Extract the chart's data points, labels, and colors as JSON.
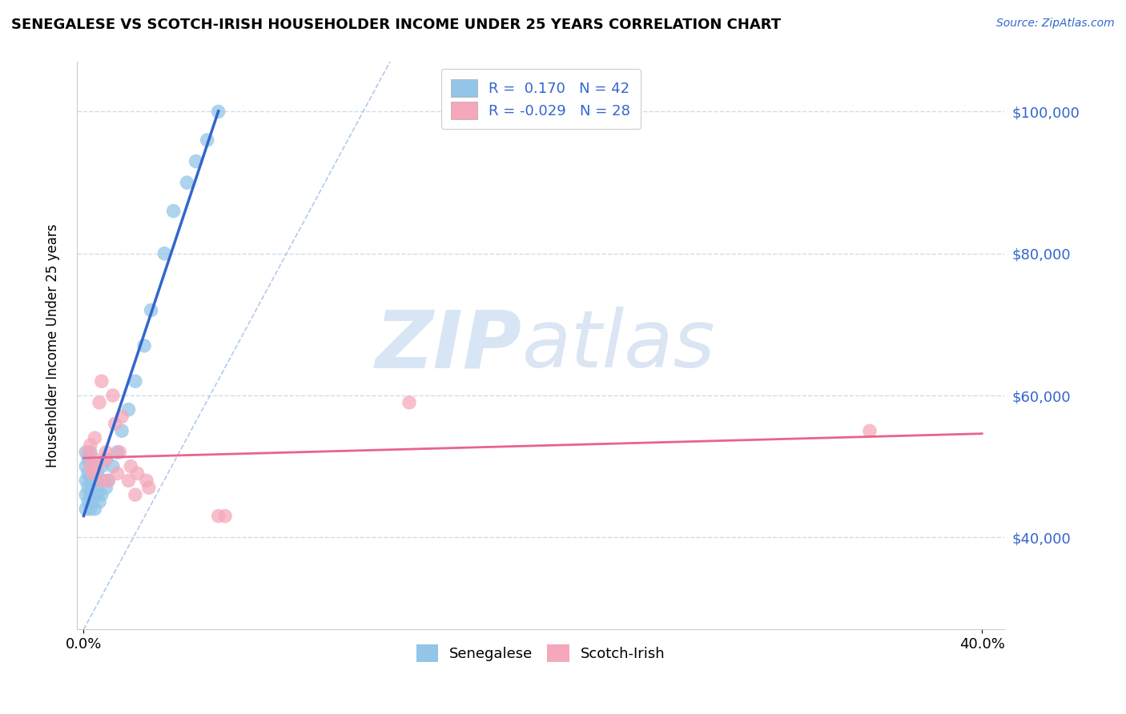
{
  "title": "SENEGALESE VS SCOTCH-IRISH HOUSEHOLDER INCOME UNDER 25 YEARS CORRELATION CHART",
  "source": "Source: ZipAtlas.com",
  "ylabel": "Householder Income Under 25 years",
  "xlim": [
    -0.003,
    0.41
  ],
  "ylim": [
    27000,
    107000
  ],
  "yticks": [
    40000,
    60000,
    80000,
    100000
  ],
  "ytick_labels": [
    "$40,000",
    "$60,000",
    "$80,000",
    "$100,000"
  ],
  "watermark_zip": "ZIP",
  "watermark_atlas": "atlas",
  "senegalese_color": "#92C5E8",
  "scotch_irish_color": "#F5A8BC",
  "senegalese_line_color": "#3366CC",
  "scotch_irish_line_color": "#E8648C",
  "diagonal_color": "#aac5e8",
  "background_color": "#ffffff",
  "grid_color": "#d0dce8",
  "senegalese_x": [
    0.001,
    0.001,
    0.001,
    0.001,
    0.001,
    0.002,
    0.002,
    0.002,
    0.002,
    0.003,
    0.003,
    0.003,
    0.003,
    0.004,
    0.004,
    0.004,
    0.005,
    0.005,
    0.005,
    0.006,
    0.006,
    0.007,
    0.007,
    0.008,
    0.008,
    0.009,
    0.01,
    0.01,
    0.011,
    0.013,
    0.015,
    0.017,
    0.02,
    0.023,
    0.027,
    0.03,
    0.036,
    0.04,
    0.046,
    0.05,
    0.055,
    0.06
  ],
  "senegalese_y": [
    44000,
    46000,
    48000,
    50000,
    52000,
    45000,
    47000,
    49000,
    51000,
    44000,
    46000,
    48000,
    52000,
    45000,
    47000,
    50000,
    44000,
    48000,
    50000,
    46000,
    49000,
    45000,
    48000,
    46000,
    50000,
    48000,
    47000,
    51000,
    48000,
    50000,
    52000,
    55000,
    58000,
    62000,
    67000,
    72000,
    80000,
    86000,
    90000,
    93000,
    96000,
    100000
  ],
  "scotch_irish_x": [
    0.002,
    0.003,
    0.003,
    0.004,
    0.005,
    0.005,
    0.006,
    0.007,
    0.008,
    0.008,
    0.01,
    0.01,
    0.011,
    0.013,
    0.014,
    0.015,
    0.016,
    0.017,
    0.02,
    0.021,
    0.023,
    0.024,
    0.028,
    0.029,
    0.06,
    0.063,
    0.145,
    0.35
  ],
  "scotch_irish_y": [
    52000,
    50000,
    53000,
    49000,
    51000,
    54000,
    50000,
    59000,
    48000,
    62000,
    51000,
    52000,
    48000,
    60000,
    56000,
    49000,
    52000,
    57000,
    48000,
    50000,
    46000,
    49000,
    48000,
    47000,
    43000,
    43000,
    59000,
    55000
  ],
  "legend_box_color": "#f0f4ff",
  "r1_val": "0.170",
  "r2_val": "-0.029",
  "n1_val": "42",
  "n2_val": "28"
}
